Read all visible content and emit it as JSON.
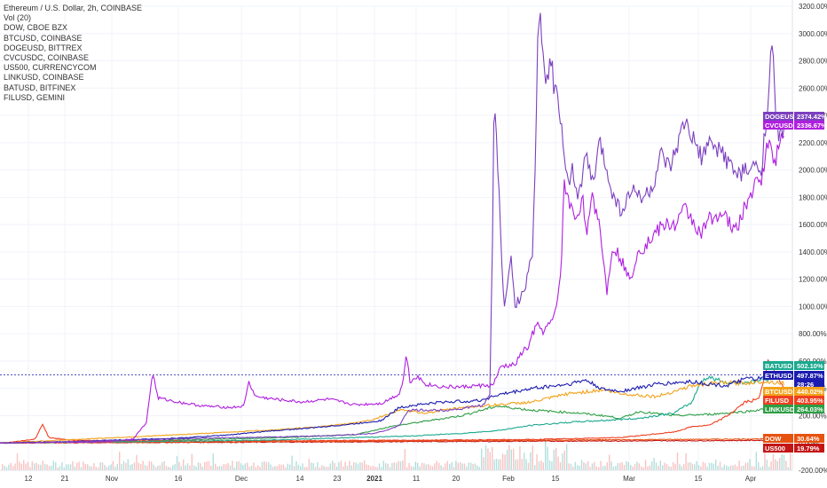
{
  "legend": {
    "title": "Ethereum / U.S. Dollar, 2h, COINBASE",
    "items": [
      "Vol (20)",
      "DOW, CBOE BZX",
      "BTCUSD, COINBASE",
      "DOGEUSD, BITTREX",
      "CVCUSDC, COINBASE",
      "US500, CURRENCYCOM",
      "LINKUSD, COINBASE",
      "BATUSD, BITFINEX",
      "FILUSD, GEMINI"
    ]
  },
  "chart_data": {
    "type": "line",
    "yaxis": {
      "unit": "%",
      "ylim": [
        -200,
        3200
      ],
      "ticks": [
        "3200.00%",
        "3000.00%",
        "2800.00%",
        "2600.00%",
        "2400.00%",
        "2200.00%",
        "2000.00%",
        "1800.00%",
        "1600.00%",
        "1400.00%",
        "1200.00%",
        "1000.00%",
        "800.00%",
        "600.00%",
        "400.00%",
        "200.00%",
        "0.00%",
        "-200.00%"
      ]
    },
    "xaxis": {
      "ticks": [
        "12",
        "21",
        "Nov",
        "16",
        "Dec",
        "14",
        "23",
        "2021",
        "11",
        "20",
        "Feb",
        "15",
        "Mar",
        "15",
        "Apr"
      ],
      "bold": [
        "2021"
      ]
    },
    "series": [
      {
        "name": "DOGEUSD",
        "color": "#7b3fbf",
        "last": "2374.42%",
        "points": [
          [
            0,
            0
          ],
          [
            40,
            3
          ],
          [
            90,
            12
          ],
          [
            140,
            20
          ],
          [
            200,
            30
          ],
          [
            260,
            40
          ],
          [
            320,
            45
          ],
          [
            380,
            55
          ],
          [
            420,
            70
          ],
          [
            440,
            100
          ],
          [
            450,
            130
          ],
          [
            455,
            180
          ],
          [
            460,
            240
          ],
          [
            470,
            240
          ],
          [
            500,
            240
          ],
          [
            520,
            250
          ],
          [
            545,
            280
          ],
          [
            552,
            350
          ],
          [
            555,
            1500
          ],
          [
            557,
            2550
          ],
          [
            562,
            1900
          ],
          [
            568,
            950
          ],
          [
            572,
            1200
          ],
          [
            576,
            1400
          ],
          [
            580,
            1000
          ],
          [
            590,
            1100
          ],
          [
            600,
            1400
          ],
          [
            604,
            2200
          ],
          [
            606,
            2900
          ],
          [
            610,
            3100
          ],
          [
            614,
            2600
          ],
          [
            620,
            2800
          ],
          [
            628,
            2500
          ],
          [
            633,
            2300
          ],
          [
            638,
            1900
          ],
          [
            645,
            2000
          ],
          [
            652,
            1800
          ],
          [
            660,
            2100
          ],
          [
            668,
            1900
          ],
          [
            676,
            2200
          ],
          [
            684,
            2000
          ],
          [
            692,
            1800
          ],
          [
            700,
            1700
          ],
          [
            712,
            1850
          ],
          [
            726,
            1800
          ],
          [
            736,
            1880
          ],
          [
            745,
            2100
          ],
          [
            755,
            2000
          ],
          [
            765,
            2200
          ],
          [
            772,
            2350
          ],
          [
            782,
            2200
          ],
          [
            790,
            2100
          ],
          [
            800,
            2180
          ],
          [
            812,
            2150
          ],
          [
            822,
            2050
          ],
          [
            830,
            1960
          ],
          [
            838,
            1980
          ],
          [
            848,
            2020
          ],
          [
            858,
            2000
          ],
          [
            862,
            2300
          ],
          [
            866,
            2550
          ],
          [
            870,
            2950
          ],
          [
            874,
            2400
          ],
          [
            878,
            2200
          ],
          [
            884,
            2374
          ]
        ]
      },
      {
        "name": "CVCUSDC",
        "color": "#b01fe0",
        "last": "2336.67%",
        "points": [
          [
            0,
            0
          ],
          [
            60,
            5
          ],
          [
            120,
            8
          ],
          [
            150,
            30
          ],
          [
            165,
            150
          ],
          [
            172,
            520
          ],
          [
            178,
            330
          ],
          [
            200,
            300
          ],
          [
            230,
            270
          ],
          [
            260,
            260
          ],
          [
            275,
            270
          ],
          [
            280,
            450
          ],
          [
            288,
            340
          ],
          [
            310,
            320
          ],
          [
            340,
            300
          ],
          [
            370,
            320
          ],
          [
            400,
            280
          ],
          [
            430,
            290
          ],
          [
            450,
            360
          ],
          [
            455,
            480
          ],
          [
            458,
            660
          ],
          [
            462,
            450
          ],
          [
            470,
            490
          ],
          [
            480,
            430
          ],
          [
            500,
            410
          ],
          [
            520,
            410
          ],
          [
            540,
            420
          ],
          [
            555,
            420
          ],
          [
            565,
            560
          ],
          [
            580,
            570
          ],
          [
            590,
            680
          ],
          [
            596,
            700
          ],
          [
            600,
            800
          ],
          [
            606,
            860
          ],
          [
            612,
            820
          ],
          [
            620,
            870
          ],
          [
            626,
            950
          ],
          [
            632,
            1250
          ],
          [
            636,
            1900
          ],
          [
            640,
            1800
          ],
          [
            644,
            1700
          ],
          [
            650,
            1650
          ],
          [
            656,
            1800
          ],
          [
            662,
            1550
          ],
          [
            668,
            1800
          ],
          [
            676,
            1600
          ],
          [
            684,
            1100
          ],
          [
            690,
            1450
          ],
          [
            700,
            1350
          ],
          [
            710,
            1180
          ],
          [
            718,
            1400
          ],
          [
            728,
            1450
          ],
          [
            740,
            1550
          ],
          [
            750,
            1600
          ],
          [
            762,
            1600
          ],
          [
            772,
            1720
          ],
          [
            780,
            1640
          ],
          [
            790,
            1520
          ],
          [
            800,
            1650
          ],
          [
            810,
            1680
          ],
          [
            820,
            1640
          ],
          [
            826,
            1550
          ],
          [
            832,
            1600
          ],
          [
            838,
            1700
          ],
          [
            848,
            1850
          ],
          [
            858,
            1950
          ],
          [
            866,
            2200
          ],
          [
            874,
            2080
          ],
          [
            884,
            2336
          ]
        ]
      },
      {
        "name": "ETHUSD",
        "color": "#1b1baf",
        "last": "497.87%",
        "points": [
          [
            0,
            0
          ],
          [
            80,
            10
          ],
          [
            150,
            25
          ],
          [
            200,
            35
          ],
          [
            260,
            60
          ],
          [
            300,
            85
          ],
          [
            350,
            110
          ],
          [
            400,
            140
          ],
          [
            430,
            165
          ],
          [
            450,
            260
          ],
          [
            470,
            280
          ],
          [
            500,
            300
          ],
          [
            540,
            310
          ],
          [
            560,
            350
          ],
          [
            600,
            400
          ],
          [
            640,
            430
          ],
          [
            660,
            460
          ],
          [
            680,
            390
          ],
          [
            700,
            380
          ],
          [
            740,
            430
          ],
          [
            780,
            450
          ],
          [
            800,
            430
          ],
          [
            820,
            420
          ],
          [
            840,
            470
          ],
          [
            860,
            470
          ],
          [
            884,
            498
          ]
        ]
      },
      {
        "name": "BTCUSD",
        "color": "#f2a21a",
        "last": "440.02%",
        "points": [
          [
            0,
            0
          ],
          [
            100,
            30
          ],
          [
            200,
            60
          ],
          [
            260,
            80
          ],
          [
            320,
            100
          ],
          [
            380,
            130
          ],
          [
            420,
            170
          ],
          [
            450,
            240
          ],
          [
            480,
            220
          ],
          [
            520,
            260
          ],
          [
            560,
            280
          ],
          [
            600,
            300
          ],
          [
            640,
            360
          ],
          [
            680,
            390
          ],
          [
            700,
            360
          ],
          [
            740,
            340
          ],
          [
            780,
            420
          ],
          [
            810,
            440
          ],
          [
            840,
            440
          ],
          [
            860,
            450
          ],
          [
            884,
            440
          ]
        ]
      },
      {
        "name": "BATUSD",
        "color": "#1aa98f",
        "last": "502.10%",
        "points": [
          [
            0,
            0
          ],
          [
            150,
            10
          ],
          [
            300,
            20
          ],
          [
            400,
            40
          ],
          [
            460,
            50
          ],
          [
            520,
            70
          ],
          [
            560,
            90
          ],
          [
            600,
            130
          ],
          [
            620,
            140
          ],
          [
            650,
            155
          ],
          [
            680,
            165
          ],
          [
            720,
            180
          ],
          [
            760,
            220
          ],
          [
            780,
            300
          ],
          [
            790,
            460
          ],
          [
            800,
            480
          ],
          [
            820,
            440
          ],
          [
            850,
            450
          ],
          [
            884,
            502
          ]
        ]
      },
      {
        "name": "FILUSD",
        "color": "#ef3f20",
        "last": "403.95%",
        "points": [
          [
            0,
            0
          ],
          [
            20,
            10
          ],
          [
            40,
            30
          ],
          [
            48,
            140
          ],
          [
            55,
            40
          ],
          [
            80,
            20
          ],
          [
            160,
            15
          ],
          [
            300,
            15
          ],
          [
            450,
            20
          ],
          [
            600,
            25
          ],
          [
            700,
            40
          ],
          [
            760,
            80
          ],
          [
            780,
            120
          ],
          [
            800,
            130
          ],
          [
            820,
            200
          ],
          [
            840,
            300
          ],
          [
            855,
            320
          ],
          [
            862,
            500
          ],
          [
            866,
            600
          ],
          [
            874,
            520
          ],
          [
            884,
            404
          ]
        ]
      },
      {
        "name": "LINKUSD",
        "color": "#2e9e44",
        "last": "264.03%",
        "points": [
          [
            0,
            0
          ],
          [
            150,
            15
          ],
          [
            300,
            35
          ],
          [
            400,
            60
          ],
          [
            440,
            120
          ],
          [
            480,
            160
          ],
          [
            520,
            200
          ],
          [
            560,
            270
          ],
          [
            600,
            240
          ],
          [
            650,
            220
          ],
          [
            680,
            200
          ],
          [
            700,
            180
          ],
          [
            720,
            230
          ],
          [
            760,
            200
          ],
          [
            800,
            210
          ],
          [
            840,
            230
          ],
          [
            884,
            264
          ]
        ]
      },
      {
        "name": "DOW",
        "color": "#e8520f",
        "last": "30.64%",
        "points": [
          [
            0,
            0
          ],
          [
            300,
            10
          ],
          [
            600,
            20
          ],
          [
            800,
            27
          ],
          [
            884,
            31
          ]
        ]
      },
      {
        "name": "US500",
        "color": "#c41515",
        "last": "19.79%",
        "points": [
          [
            0,
            0
          ],
          [
            300,
            6
          ],
          [
            600,
            13
          ],
          [
            800,
            17
          ],
          [
            884,
            20
          ]
        ]
      }
    ],
    "tags": [
      {
        "label": "DOGEUSD",
        "value": "2374.42%",
        "color": "#7b3fbf"
      },
      {
        "label": "CVCUSDC",
        "value": "2336.67%",
        "color": "#b01fe0"
      },
      {
        "label": "BATUSD",
        "value": "502.10%",
        "color": "#1aa98f"
      },
      {
        "label": "ETHUSD",
        "value": "497.87%",
        "color": "#1b1baf"
      },
      {
        "label": "",
        "value": "28:26",
        "color": "#1b1baf"
      },
      {
        "label": "BTCUSD",
        "value": "440.02%",
        "color": "#f2a21a"
      },
      {
        "label": "FILUSD",
        "value": "403.95%",
        "color": "#ef3f20"
      },
      {
        "label": "LINKUSD",
        "value": "264.03%",
        "color": "#2e9e44"
      },
      {
        "label": "DOW",
        "value": "30.64%",
        "color": "#e8520f"
      },
      {
        "label": "US500",
        "value": "19.79%",
        "color": "#c41515"
      }
    ],
    "ref_line_value": 497.87,
    "grid": true
  }
}
